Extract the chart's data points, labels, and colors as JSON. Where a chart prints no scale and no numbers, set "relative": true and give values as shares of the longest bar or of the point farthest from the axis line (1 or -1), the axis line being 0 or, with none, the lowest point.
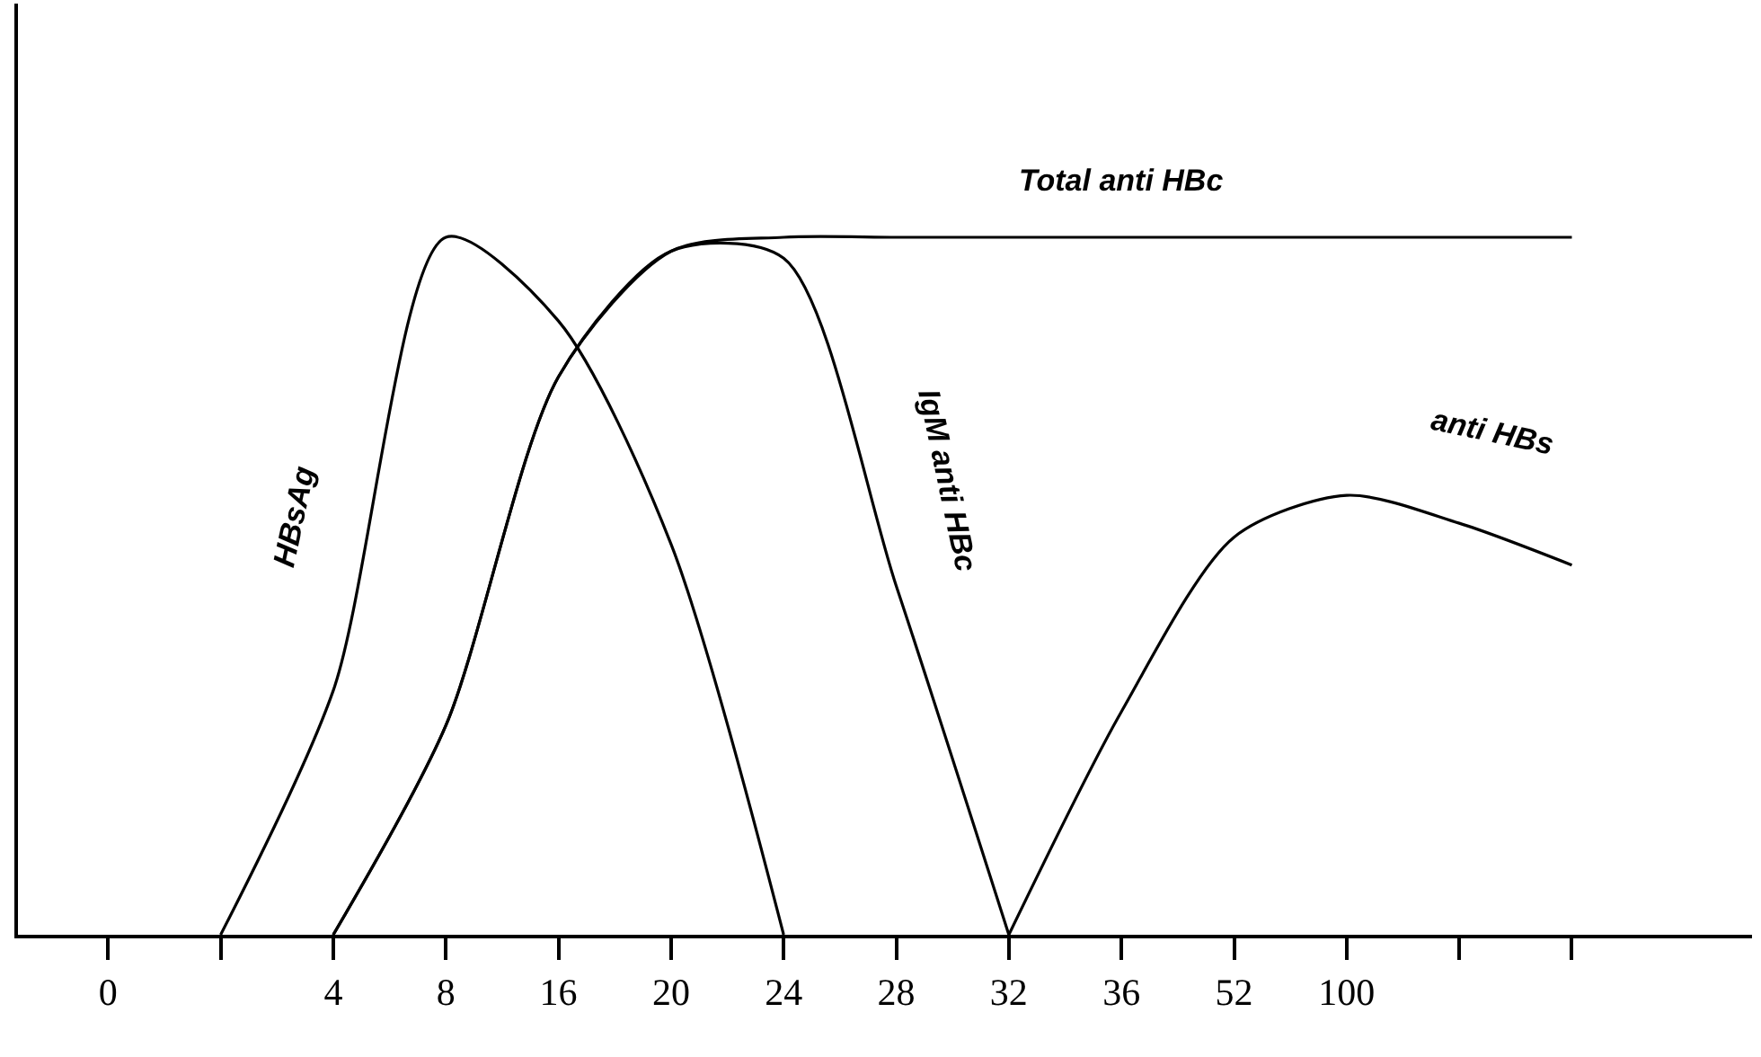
{
  "chart_data": {
    "type": "line",
    "relative": true,
    "legend": false,
    "grid": false,
    "marker": "none",
    "line_style": "solid",
    "categories": [
      "0",
      null,
      "4",
      "8",
      "16",
      "20",
      "24",
      "28",
      "32",
      "36",
      "52",
      "100",
      null,
      null
    ],
    "series": [
      {
        "name": "HBsAg",
        "color": "#000000",
        "values": [
          null,
          0,
          0.35,
          1,
          0.88,
          0.56,
          0,
          null,
          null,
          null,
          null,
          null,
          null,
          null
        ]
      },
      {
        "name": "Total anti HBc",
        "color": "#000000",
        "values": [
          null,
          null,
          0,
          0.3,
          0.8,
          0.98,
          1,
          1,
          1,
          1,
          1,
          1,
          1,
          1
        ]
      },
      {
        "name": "IgM anti HBc",
        "color": "#000000",
        "values": [
          null,
          null,
          0,
          0.3,
          0.8,
          0.98,
          0.97,
          0.5,
          0,
          null,
          null,
          null,
          null,
          null
        ]
      },
      {
        "name": "anti HBs",
        "color": "#000000",
        "values": [
          null,
          null,
          null,
          null,
          null,
          null,
          null,
          null,
          0,
          0.32,
          0.57,
          0.63,
          0.59,
          0.53
        ]
      }
    ]
  }
}
